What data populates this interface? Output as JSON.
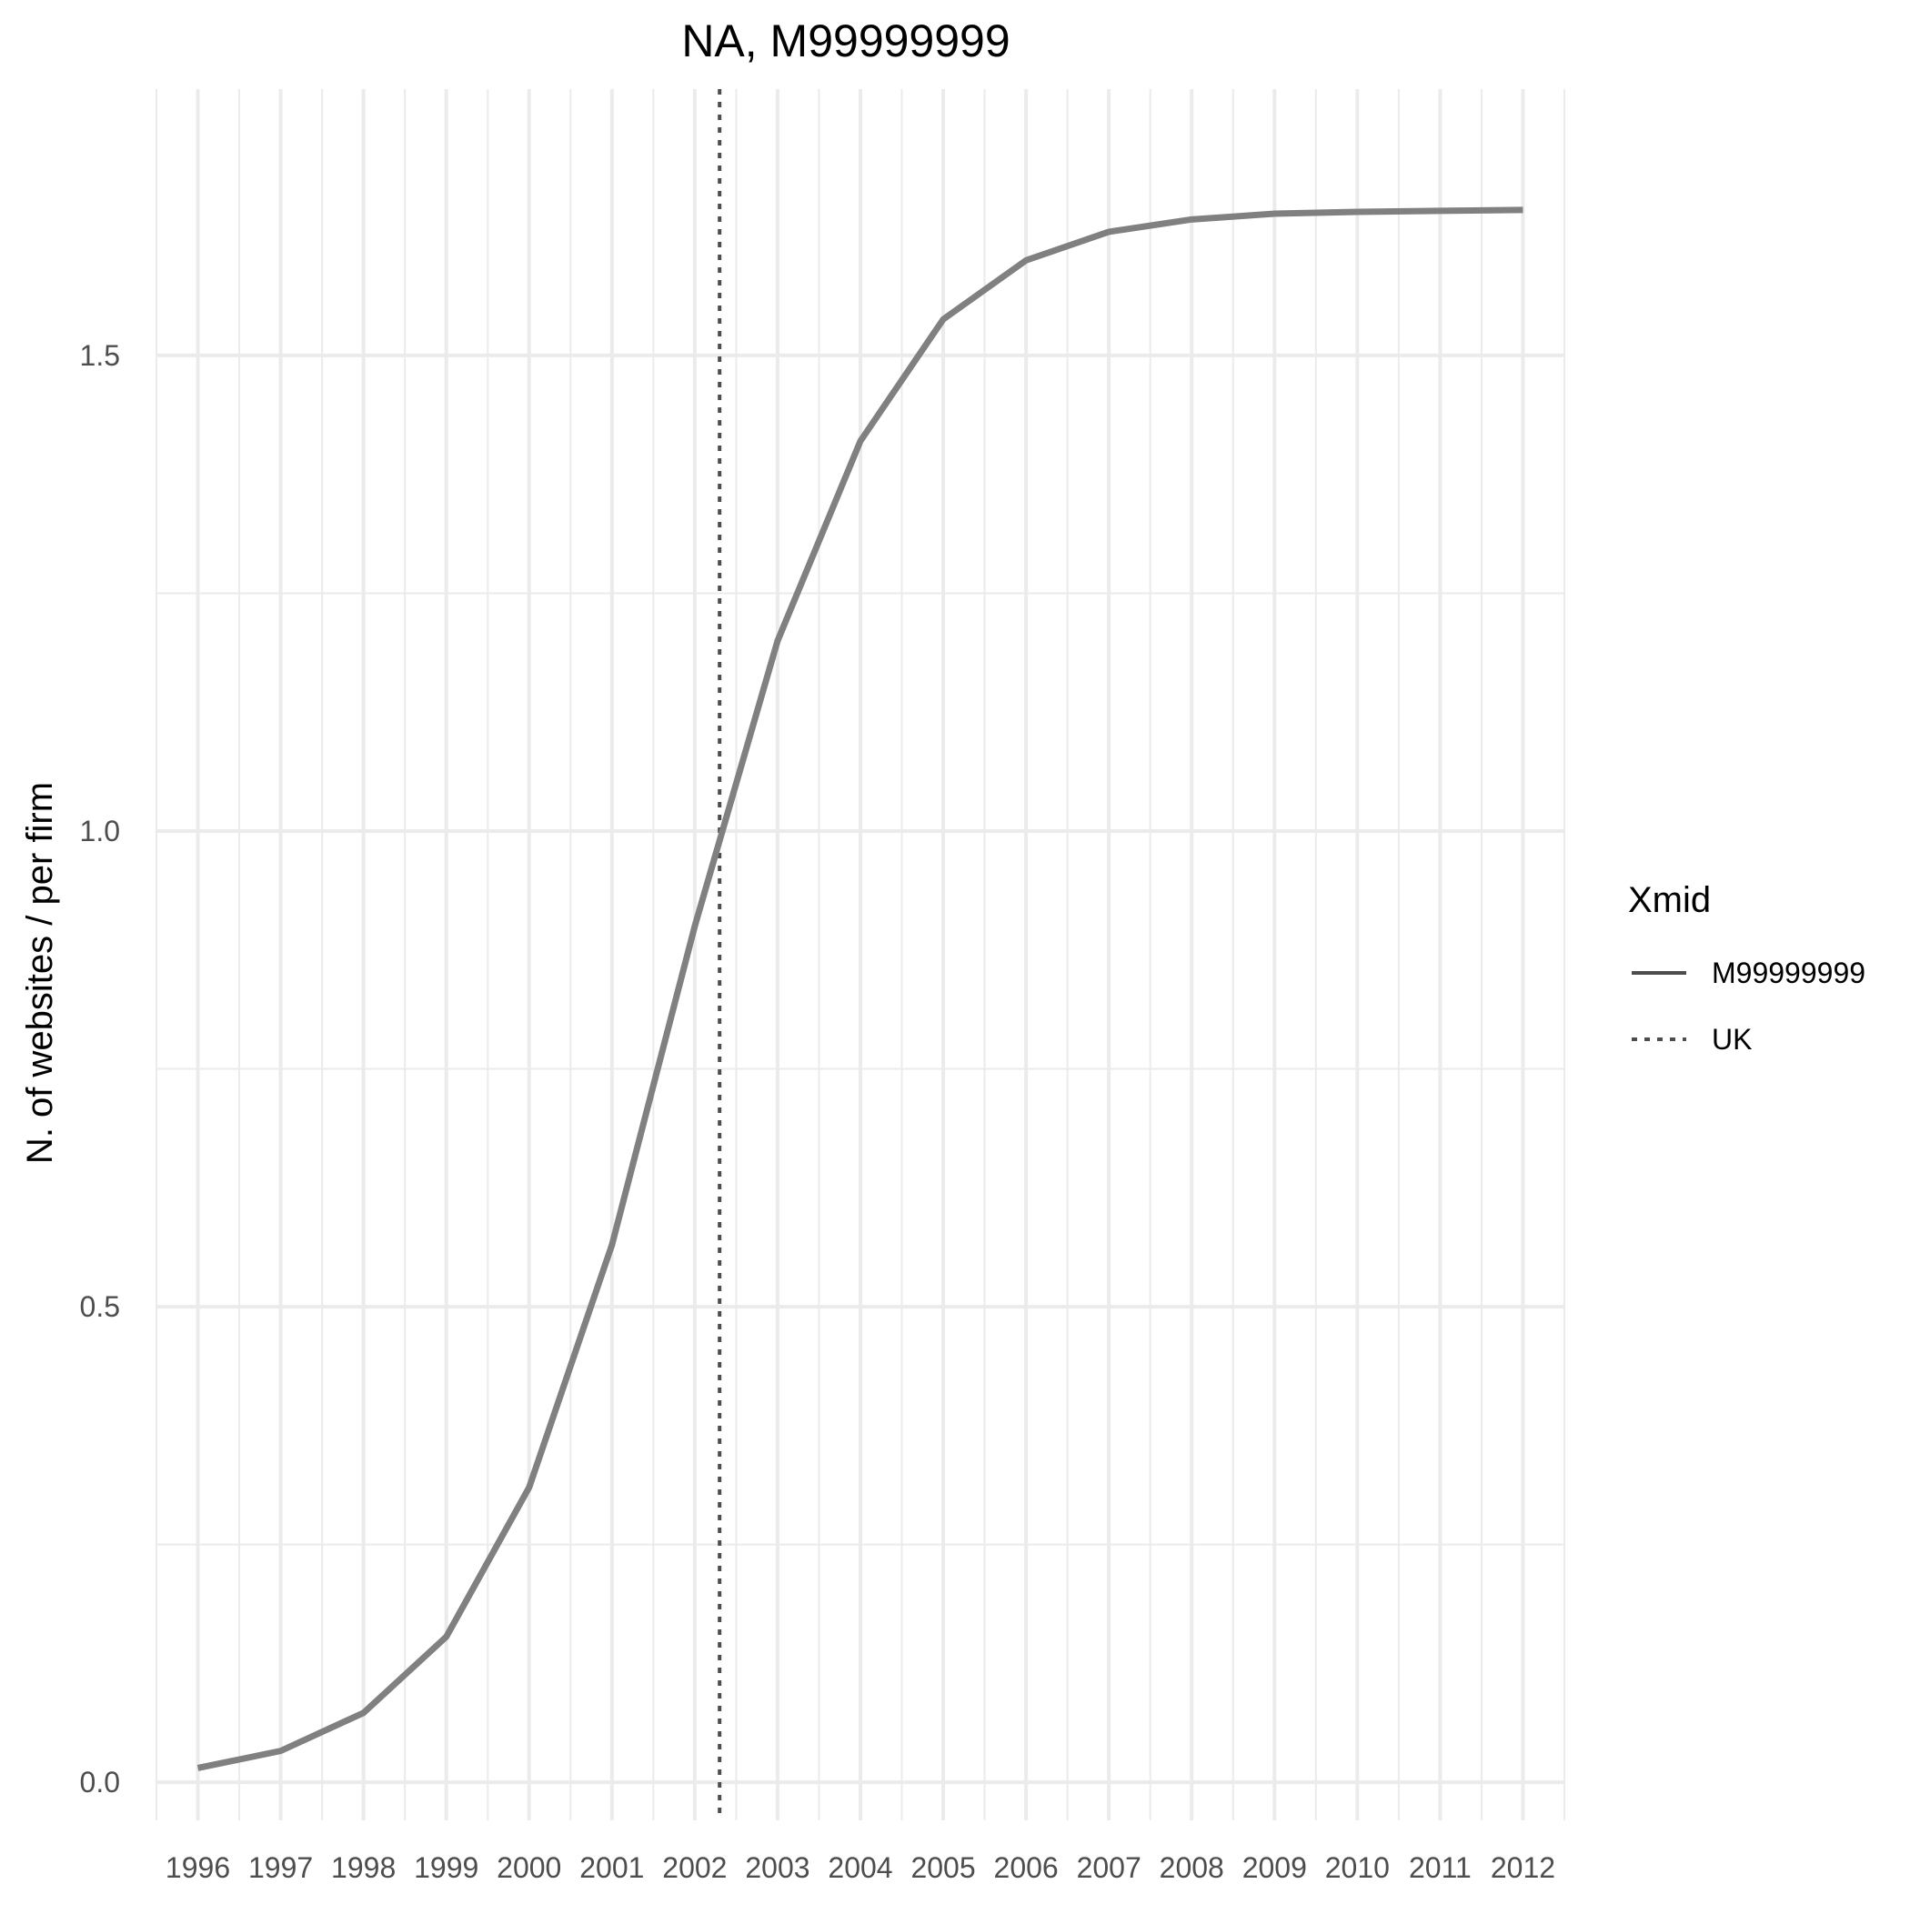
{
  "chart_data": {
    "type": "line",
    "title": "NA, M99999999",
    "xlabel": "",
    "ylabel": "N. of websites / per firm",
    "x": [
      1996,
      1997,
      1998,
      1999,
      2000,
      2001,
      2002,
      2003,
      2004,
      2005,
      2006,
      2007,
      2008,
      2009,
      2010,
      2011,
      2012
    ],
    "x_tick_labels": [
      "1996",
      "1997",
      "1998",
      "1999",
      "2000",
      "2001",
      "2002",
      "2003",
      "2004",
      "2005",
      "2006",
      "2007",
      "2008",
      "2009",
      "2010",
      "2011",
      "2012"
    ],
    "y_ticks": [
      0.0,
      0.5,
      1.0,
      1.5
    ],
    "y_tick_labels": [
      "0.0",
      "0.5",
      "1.0",
      "1.5"
    ],
    "xlim": [
      1995.5,
      2012.5
    ],
    "ylim": [
      -0.04,
      1.78
    ],
    "grid": true,
    "series": [
      {
        "name": "M99999999",
        "line_style": "solid",
        "color": "#808080",
        "values": [
          0.015,
          0.033,
          0.073,
          0.153,
          0.31,
          0.565,
          0.9,
          1.2,
          1.41,
          1.538,
          1.6,
          1.63,
          1.643,
          1.649,
          1.651,
          1.652,
          1.653
        ]
      }
    ],
    "reference_lines": [
      {
        "name": "UK",
        "orientation": "vertical",
        "x": 2002.3,
        "line_style": "dotted",
        "color": "#4d4d4d"
      }
    ],
    "legend": {
      "title": "Xmid",
      "position": "right",
      "entries": [
        {
          "label": "M99999999",
          "line_style": "solid"
        },
        {
          "label": "UK",
          "line_style": "dotted"
        }
      ]
    }
  }
}
